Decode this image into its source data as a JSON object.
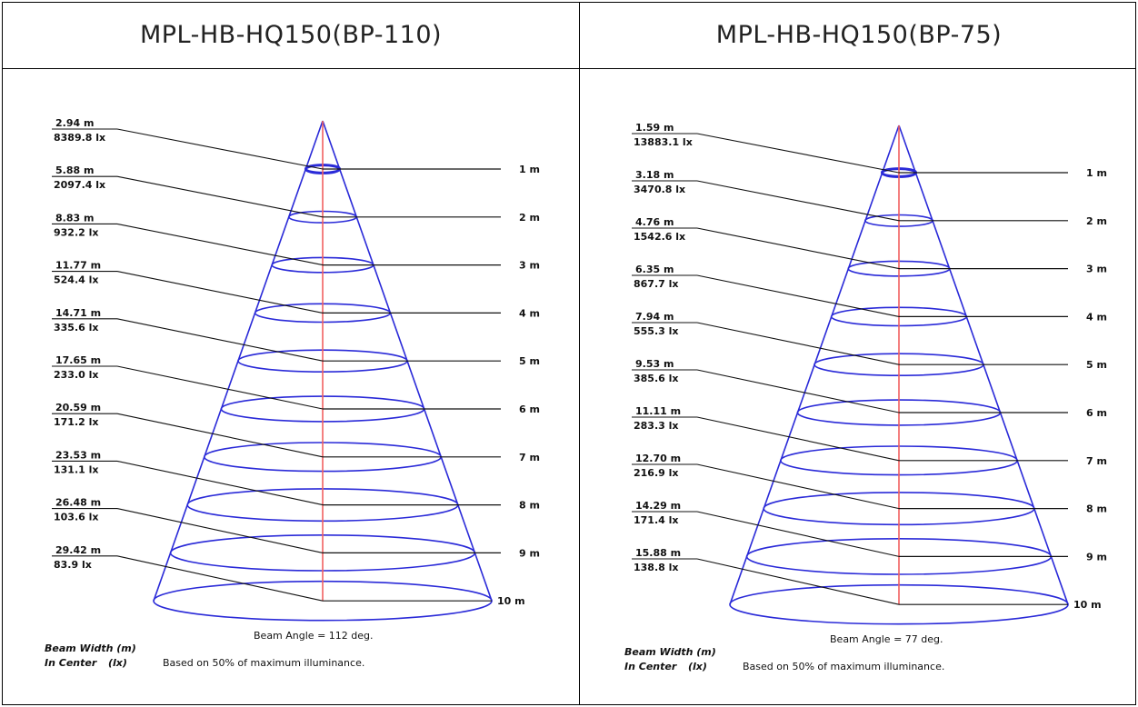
{
  "panels": [
    {
      "title": "MPL-HB-HQ150(BP-110)",
      "beam_angle_text": "Beam Angle = 112 deg.",
      "legend_width": "Beam Width (m)",
      "legend_center_a": "In Center",
      "legend_center_b": "(lx)",
      "note": "Based on 50% of maximum illuminance.",
      "rows": [
        {
          "distance": "1 m",
          "width": "2.94 m",
          "lux": "8389.8 lx"
        },
        {
          "distance": "2 m",
          "width": "5.88 m",
          "lux": "2097.4 lx"
        },
        {
          "distance": "3 m",
          "width": "8.83 m",
          "lux": "932.2 lx"
        },
        {
          "distance": "4 m",
          "width": "11.77 m",
          "lux": "524.4 lx"
        },
        {
          "distance": "5 m",
          "width": "14.71 m",
          "lux": "335.6 lx"
        },
        {
          "distance": "6 m",
          "width": "17.65 m",
          "lux": "233.0 lx"
        },
        {
          "distance": "7 m",
          "width": "20.59 m",
          "lux": "171.2 lx"
        },
        {
          "distance": "8 m",
          "width": "23.53 m",
          "lux": "131.1 lx"
        },
        {
          "distance": "9 m",
          "width": "26.48 m",
          "lux": "103.6 lx"
        },
        {
          "distance": "10 m",
          "width": "29.42 m",
          "lux": "83.9 lx"
        }
      ]
    },
    {
      "title": "MPL-HB-HQ150(BP-75)",
      "beam_angle_text": "Beam Angle = 77 deg.",
      "legend_width": "Beam Width (m)",
      "legend_center_a": "In Center",
      "legend_center_b": "(lx)",
      "note": "Based on 50% of maximum illuminance.",
      "rows": [
        {
          "distance": "1 m",
          "width": "1.59 m",
          "lux": "13883.1 lx"
        },
        {
          "distance": "2 m",
          "width": "3.18 m",
          "lux": "3470.8 lx"
        },
        {
          "distance": "3 m",
          "width": "4.76 m",
          "lux": "1542.6 lx"
        },
        {
          "distance": "4 m",
          "width": "6.35 m",
          "lux": "867.7 lx"
        },
        {
          "distance": "5 m",
          "width": "7.94 m",
          "lux": "555.3 lx"
        },
        {
          "distance": "6 m",
          "width": "9.53 m",
          "lux": "385.6 lx"
        },
        {
          "distance": "7 m",
          "width": "11.11 m",
          "lux": "283.3 lx"
        },
        {
          "distance": "8 m",
          "width": "12.70 m",
          "lux": "216.9 lx"
        },
        {
          "distance": "9 m",
          "width": "14.29 m",
          "lux": "171.4 lx"
        },
        {
          "distance": "10 m",
          "width": "15.88 m",
          "lux": "138.8 lx"
        }
      ]
    }
  ],
  "colors": {
    "cone": "#2a2ad8",
    "axis": "#f26060",
    "leader": "#111111",
    "frame": "#000000"
  }
}
